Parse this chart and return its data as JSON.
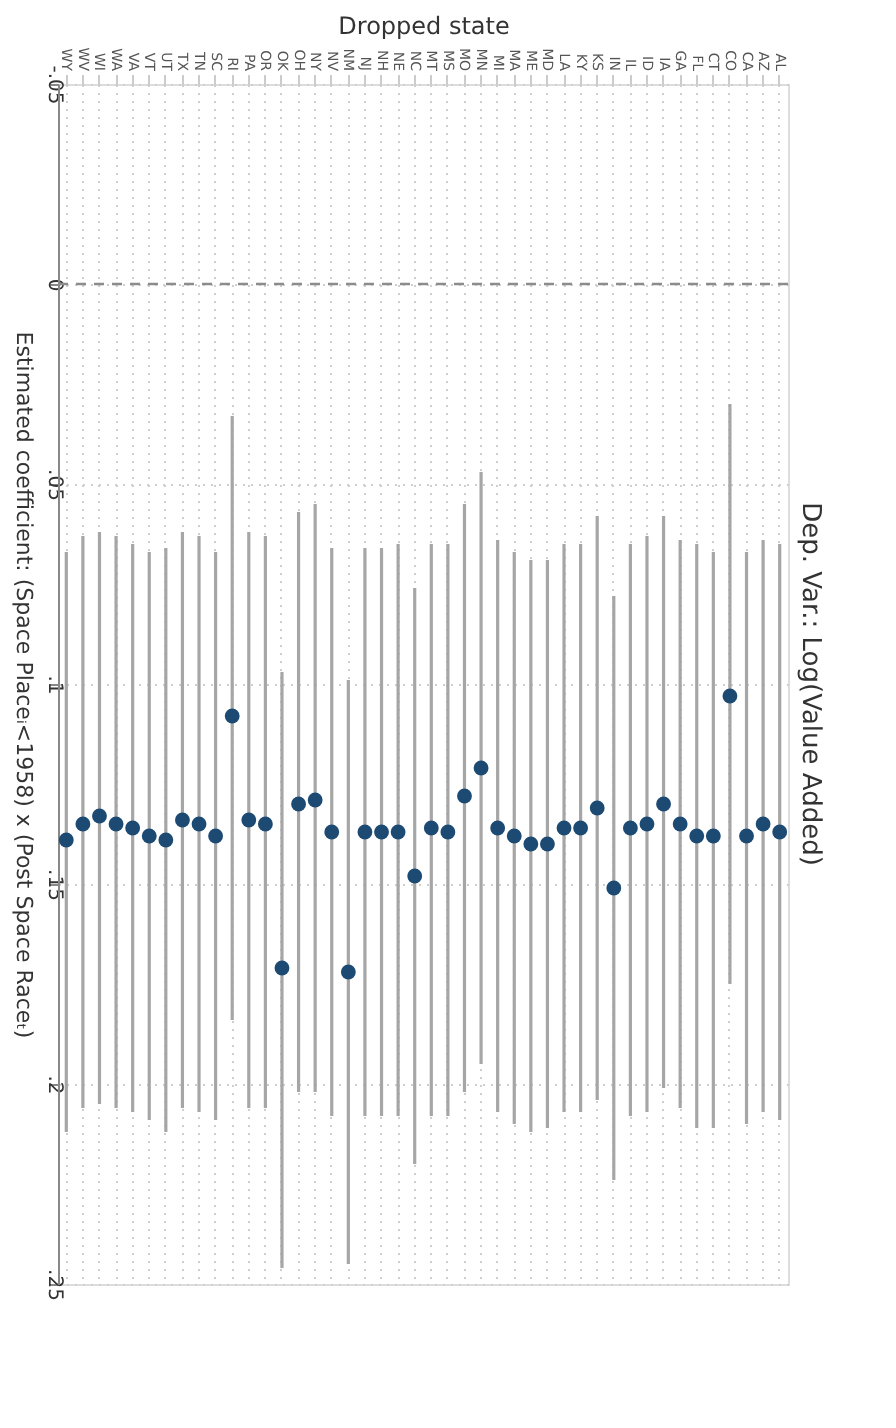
{
  "chart_data": {
    "type": "scatter",
    "title": "Dep. Var.: Log(Value Added)",
    "xlabel": "Dropped state",
    "ylabel": "Estimated coefficient: (Space Placeᵢ<1958) x (Post Space Raceₜ)",
    "categories": [
      "WY",
      "WV",
      "WI",
      "WA",
      "VA",
      "VT",
      "UT",
      "TX",
      "TN",
      "SC",
      "RI",
      "PA",
      "OR",
      "OK",
      "OH",
      "NY",
      "NV",
      "NM",
      "NJ",
      "NH",
      "NE",
      "NC",
      "MT",
      "MS",
      "MO",
      "MN",
      "MI",
      "MA",
      "ME",
      "MD",
      "LA",
      "KY",
      "KS",
      "IN",
      "IL",
      "ID",
      "IA",
      "GA",
      "FL",
      "CT",
      "CO",
      "CA",
      "AZ",
      "AL"
    ],
    "series": [
      {
        "color": "#1c4a73",
        "values": [
          0.139,
          0.135,
          0.133,
          0.135,
          0.136,
          0.138,
          0.139,
          0.134,
          0.135,
          0.138,
          0.108,
          0.134,
          0.135,
          0.171,
          0.13,
          0.129,
          0.137,
          0.172,
          0.137,
          0.137,
          0.137,
          0.148,
          0.136,
          0.137,
          0.128,
          0.121,
          0.136,
          0.138,
          0.14,
          0.14,
          0.136,
          0.136,
          0.131,
          0.151,
          0.136,
          0.135,
          0.13,
          0.135,
          0.138,
          0.138,
          0.103,
          0.138,
          0.135,
          0.137
        ],
        "errors": [
          [
            0.067,
            0.212
          ],
          [
            0.063,
            0.206
          ],
          [
            0.062,
            0.205
          ],
          [
            0.063,
            0.206
          ],
          [
            0.065,
            0.207
          ],
          [
            0.067,
            0.209
          ],
          [
            0.066,
            0.212
          ],
          [
            0.062,
            0.206
          ],
          [
            0.063,
            0.207
          ],
          [
            0.067,
            0.209
          ],
          [
            0.033,
            0.184
          ],
          [
            0.062,
            0.206
          ],
          [
            0.063,
            0.206
          ],
          [
            0.097,
            0.246
          ],
          [
            0.057,
            0.202
          ],
          [
            0.055,
            0.202
          ],
          [
            0.066,
            0.208
          ],
          [
            0.099,
            0.245
          ],
          [
            0.066,
            0.208
          ],
          [
            0.066,
            0.208
          ],
          [
            0.065,
            0.208
          ],
          [
            0.076,
            0.22
          ],
          [
            0.065,
            0.208
          ],
          [
            0.065,
            0.208
          ],
          [
            0.055,
            0.202
          ],
          [
            0.047,
            0.195
          ],
          [
            0.064,
            0.207
          ],
          [
            0.067,
            0.21
          ],
          [
            0.069,
            0.212
          ],
          [
            0.069,
            0.211
          ],
          [
            0.065,
            0.207
          ],
          [
            0.065,
            0.207
          ],
          [
            0.058,
            0.204
          ],
          [
            0.078,
            0.224
          ],
          [
            0.065,
            0.208
          ],
          [
            0.063,
            0.207
          ],
          [
            0.058,
            0.201
          ],
          [
            0.064,
            0.206
          ],
          [
            0.065,
            0.211
          ],
          [
            0.067,
            0.211
          ],
          [
            0.03,
            0.175
          ],
          [
            0.067,
            0.21
          ],
          [
            0.064,
            0.207
          ],
          [
            0.065,
            0.209
          ]
        ]
      }
    ],
    "ylim": [
      0.25,
      -0.05
    ],
    "yticks": [
      {
        "value": -0.05,
        "label": "-.05"
      },
      0,
      {
        "value": 0.05,
        "label": ".05"
      },
      {
        "value": 0.1,
        "label": ".1"
      },
      {
        "value": 0.15,
        "label": ".15"
      },
      {
        "value": 0.2,
        "label": ".2"
      },
      {
        "value": 0.25,
        "label": ".25"
      }
    ],
    "ref_lines": [
      {
        "axis": "y",
        "value": 0,
        "color": "#8c8c8c",
        "line_style": "dashed"
      }
    ],
    "grid": true,
    "line_style": "dotted",
    "marker": "circle"
  }
}
